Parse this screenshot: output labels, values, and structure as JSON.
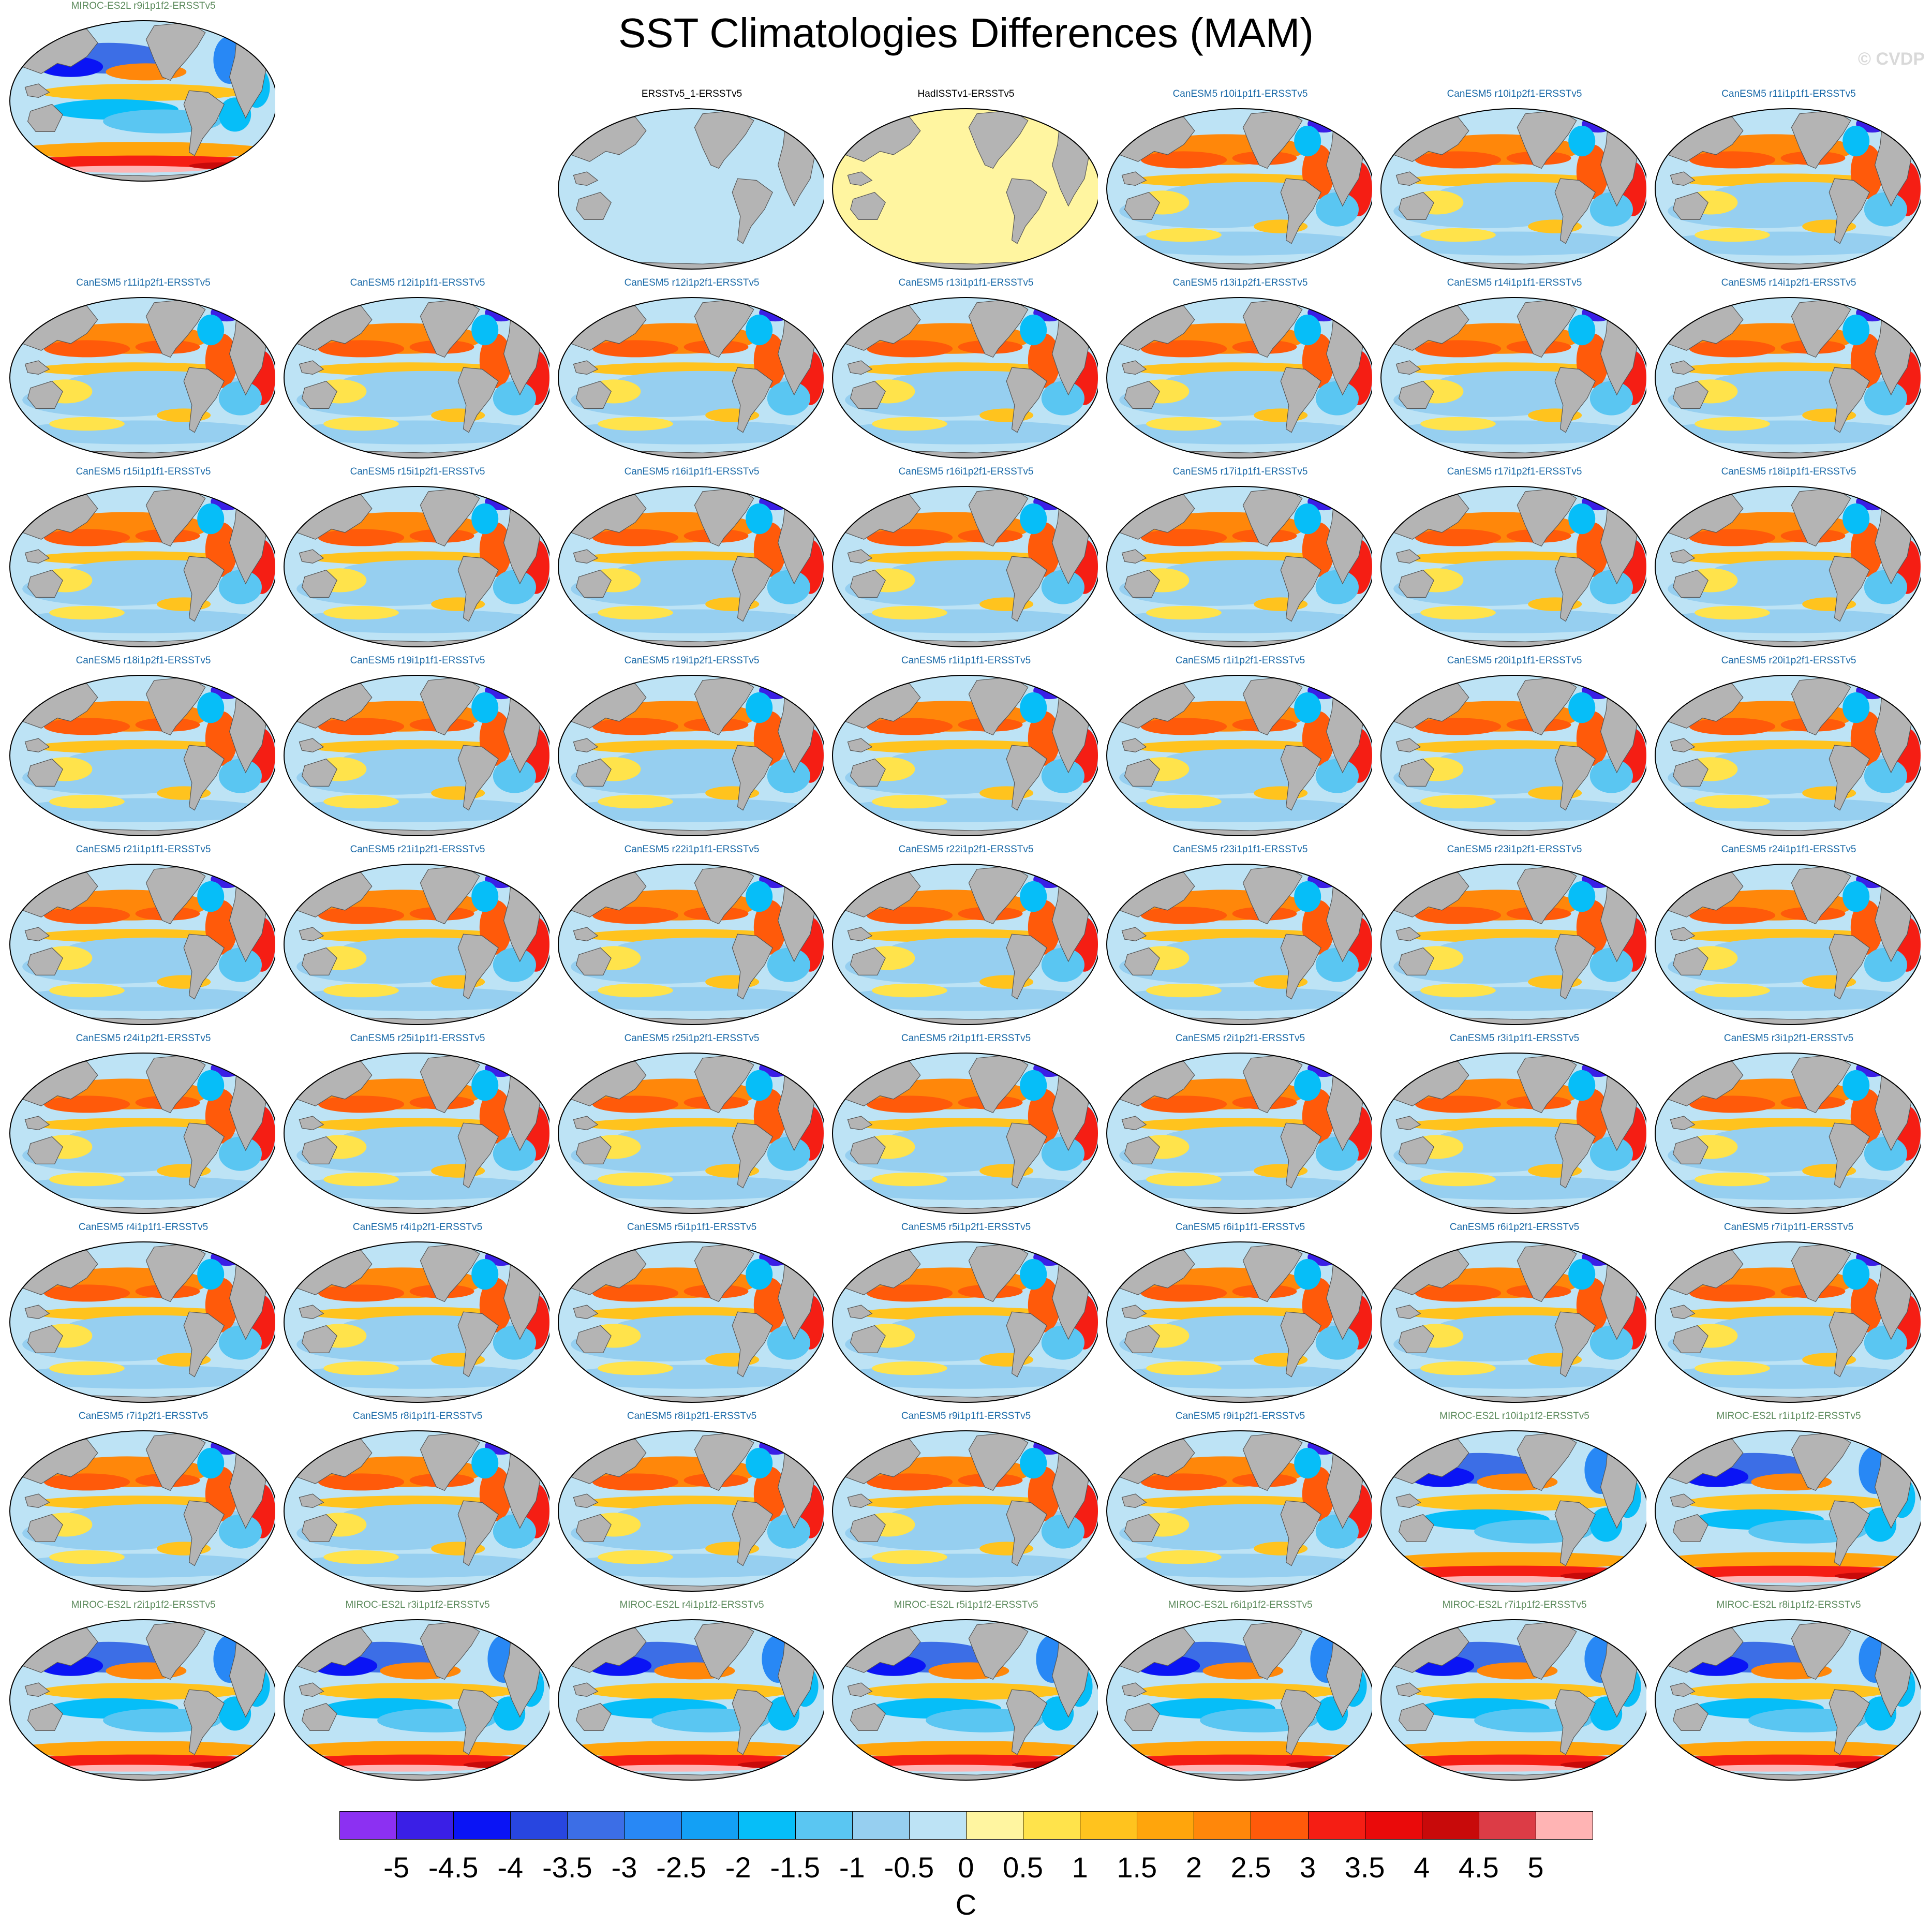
{
  "title": "SST Climatologies Differences (MAM)",
  "watermark": "© CVDP",
  "chart_data": {
    "type": "heatmap",
    "title": "SST Climatologies Differences (MAM)",
    "units": "C",
    "colorbar": {
      "levels": [
        -5,
        -4.5,
        -4,
        -3.5,
        -3,
        -2.5,
        -2,
        -1.5,
        -1,
        -0.5,
        0,
        0.5,
        1,
        1.5,
        2,
        2.5,
        3,
        3.5,
        4,
        4.5,
        5
      ],
      "tick_labels": [
        "-5",
        "-4.5",
        "-4",
        "-3.5",
        "-3",
        "-2.5",
        "-2",
        "-1.5",
        "-1",
        "-0.5",
        "0",
        "0.5",
        "1",
        "1.5",
        "2",
        "2.5",
        "3",
        "3.5",
        "4",
        "4.5",
        "5"
      ],
      "colors": [
        "#8c30f2",
        "#3a1fe6",
        "#0a14f5",
        "#2846e0",
        "#3c6ee6",
        "#2888f5",
        "#13a0f5",
        "#06bef8",
        "#5ac6f2",
        "#96cff0",
        "#bde3f5",
        "#fff5a0",
        "#ffe34b",
        "#ffc31e",
        "#ffa50c",
        "#ff870a",
        "#ff5a0a",
        "#f51e14",
        "#ea0a0a",
        "#c80a0a",
        "#dc3c46",
        "#ffb4b4"
      ]
    },
    "panels": [
      {
        "label": "ERSSTv5_1-ERSSTv5",
        "dataset": "ERSSTv5_1",
        "title_color": "#000000",
        "pattern": "zero"
      },
      {
        "label": "HadISSTv1-ERSSTv5",
        "dataset": "HadISSTv1",
        "title_color": "#000000",
        "pattern": "small_positive"
      },
      {
        "label": "CanESM5 r10i1p1f1-ERSSTv5",
        "dataset": "CanESM5",
        "title_color": "#1a6aa8",
        "pattern": "canesm5"
      },
      {
        "label": "CanESM5 r10i1p2f1-ERSSTv5",
        "dataset": "CanESM5",
        "title_color": "#1a6aa8",
        "pattern": "canesm5"
      },
      {
        "label": "CanESM5 r11i1p1f1-ERSSTv5",
        "dataset": "CanESM5",
        "title_color": "#1a6aa8",
        "pattern": "canesm5"
      },
      {
        "label": "CanESM5 r11i1p2f1-ERSSTv5",
        "dataset": "CanESM5",
        "title_color": "#1a6aa8",
        "pattern": "canesm5"
      },
      {
        "label": "CanESM5 r12i1p1f1-ERSSTv5",
        "dataset": "CanESM5",
        "title_color": "#1a6aa8",
        "pattern": "canesm5"
      },
      {
        "label": "CanESM5 r12i1p2f1-ERSSTv5",
        "dataset": "CanESM5",
        "title_color": "#1a6aa8",
        "pattern": "canesm5"
      },
      {
        "label": "CanESM5 r13i1p1f1-ERSSTv5",
        "dataset": "CanESM5",
        "title_color": "#1a6aa8",
        "pattern": "canesm5"
      },
      {
        "label": "CanESM5 r13i1p2f1-ERSSTv5",
        "dataset": "CanESM5",
        "title_color": "#1a6aa8",
        "pattern": "canesm5"
      },
      {
        "label": "CanESM5 r14i1p1f1-ERSSTv5",
        "dataset": "CanESM5",
        "title_color": "#1a6aa8",
        "pattern": "canesm5"
      },
      {
        "label": "CanESM5 r14i1p2f1-ERSSTv5",
        "dataset": "CanESM5",
        "title_color": "#1a6aa8",
        "pattern": "canesm5"
      },
      {
        "label": "CanESM5 r15i1p1f1-ERSSTv5",
        "dataset": "CanESM5",
        "title_color": "#1a6aa8",
        "pattern": "canesm5"
      },
      {
        "label": "CanESM5 r15i1p2f1-ERSSTv5",
        "dataset": "CanESM5",
        "title_color": "#1a6aa8",
        "pattern": "canesm5"
      },
      {
        "label": "CanESM5 r16i1p1f1-ERSSTv5",
        "dataset": "CanESM5",
        "title_color": "#1a6aa8",
        "pattern": "canesm5"
      },
      {
        "label": "CanESM5 r16i1p2f1-ERSSTv5",
        "dataset": "CanESM5",
        "title_color": "#1a6aa8",
        "pattern": "canesm5"
      },
      {
        "label": "CanESM5 r17i1p1f1-ERSSTv5",
        "dataset": "CanESM5",
        "title_color": "#1a6aa8",
        "pattern": "canesm5"
      },
      {
        "label": "CanESM5 r17i1p2f1-ERSSTv5",
        "dataset": "CanESM5",
        "title_color": "#1a6aa8",
        "pattern": "canesm5"
      },
      {
        "label": "CanESM5 r18i1p1f1-ERSSTv5",
        "dataset": "CanESM5",
        "title_color": "#1a6aa8",
        "pattern": "canesm5"
      },
      {
        "label": "CanESM5 r18i1p2f1-ERSSTv5",
        "dataset": "CanESM5",
        "title_color": "#1a6aa8",
        "pattern": "canesm5"
      },
      {
        "label": "CanESM5 r19i1p1f1-ERSSTv5",
        "dataset": "CanESM5",
        "title_color": "#1a6aa8",
        "pattern": "canesm5"
      },
      {
        "label": "CanESM5 r19i1p2f1-ERSSTv5",
        "dataset": "CanESM5",
        "title_color": "#1a6aa8",
        "pattern": "canesm5"
      },
      {
        "label": "CanESM5 r1i1p1f1-ERSSTv5",
        "dataset": "CanESM5",
        "title_color": "#1a6aa8",
        "pattern": "canesm5"
      },
      {
        "label": "CanESM5 r1i1p2f1-ERSSTv5",
        "dataset": "CanESM5",
        "title_color": "#1a6aa8",
        "pattern": "canesm5"
      },
      {
        "label": "CanESM5 r20i1p1f1-ERSSTv5",
        "dataset": "CanESM5",
        "title_color": "#1a6aa8",
        "pattern": "canesm5"
      },
      {
        "label": "CanESM5 r20i1p2f1-ERSSTv5",
        "dataset": "CanESM5",
        "title_color": "#1a6aa8",
        "pattern": "canesm5"
      },
      {
        "label": "CanESM5 r21i1p1f1-ERSSTv5",
        "dataset": "CanESM5",
        "title_color": "#1a6aa8",
        "pattern": "canesm5"
      },
      {
        "label": "CanESM5 r21i1p2f1-ERSSTv5",
        "dataset": "CanESM5",
        "title_color": "#1a6aa8",
        "pattern": "canesm5"
      },
      {
        "label": "CanESM5 r22i1p1f1-ERSSTv5",
        "dataset": "CanESM5",
        "title_color": "#1a6aa8",
        "pattern": "canesm5"
      },
      {
        "label": "CanESM5 r22i1p2f1-ERSSTv5",
        "dataset": "CanESM5",
        "title_color": "#1a6aa8",
        "pattern": "canesm5"
      },
      {
        "label": "CanESM5 r23i1p1f1-ERSSTv5",
        "dataset": "CanESM5",
        "title_color": "#1a6aa8",
        "pattern": "canesm5"
      },
      {
        "label": "CanESM5 r23i1p2f1-ERSSTv5",
        "dataset": "CanESM5",
        "title_color": "#1a6aa8",
        "pattern": "canesm5"
      },
      {
        "label": "CanESM5 r24i1p1f1-ERSSTv5",
        "dataset": "CanESM5",
        "title_color": "#1a6aa8",
        "pattern": "canesm5"
      },
      {
        "label": "CanESM5 r24i1p2f1-ERSSTv5",
        "dataset": "CanESM5",
        "title_color": "#1a6aa8",
        "pattern": "canesm5"
      },
      {
        "label": "CanESM5 r25i1p1f1-ERSSTv5",
        "dataset": "CanESM5",
        "title_color": "#1a6aa8",
        "pattern": "canesm5"
      },
      {
        "label": "CanESM5 r25i1p2f1-ERSSTv5",
        "dataset": "CanESM5",
        "title_color": "#1a6aa8",
        "pattern": "canesm5"
      },
      {
        "label": "CanESM5 r2i1p1f1-ERSSTv5",
        "dataset": "CanESM5",
        "title_color": "#1a6aa8",
        "pattern": "canesm5"
      },
      {
        "label": "CanESM5 r2i1p2f1-ERSSTv5",
        "dataset": "CanESM5",
        "title_color": "#1a6aa8",
        "pattern": "canesm5"
      },
      {
        "label": "CanESM5 r3i1p1f1-ERSSTv5",
        "dataset": "CanESM5",
        "title_color": "#1a6aa8",
        "pattern": "canesm5"
      },
      {
        "label": "CanESM5 r3i1p2f1-ERSSTv5",
        "dataset": "CanESM5",
        "title_color": "#1a6aa8",
        "pattern": "canesm5"
      },
      {
        "label": "CanESM5 r4i1p1f1-ERSSTv5",
        "dataset": "CanESM5",
        "title_color": "#1a6aa8",
        "pattern": "canesm5"
      },
      {
        "label": "CanESM5 r4i1p2f1-ERSSTv5",
        "dataset": "CanESM5",
        "title_color": "#1a6aa8",
        "pattern": "canesm5"
      },
      {
        "label": "CanESM5 r5i1p1f1-ERSSTv5",
        "dataset": "CanESM5",
        "title_color": "#1a6aa8",
        "pattern": "canesm5"
      },
      {
        "label": "CanESM5 r5i1p2f1-ERSSTv5",
        "dataset": "CanESM5",
        "title_color": "#1a6aa8",
        "pattern": "canesm5"
      },
      {
        "label": "CanESM5 r6i1p1f1-ERSSTv5",
        "dataset": "CanESM5",
        "title_color": "#1a6aa8",
        "pattern": "canesm5"
      },
      {
        "label": "CanESM5 r6i1p2f1-ERSSTv5",
        "dataset": "CanESM5",
        "title_color": "#1a6aa8",
        "pattern": "canesm5"
      },
      {
        "label": "CanESM5 r7i1p1f1-ERSSTv5",
        "dataset": "CanESM5",
        "title_color": "#1a6aa8",
        "pattern": "canesm5"
      },
      {
        "label": "CanESM5 r7i1p2f1-ERSSTv5",
        "dataset": "CanESM5",
        "title_color": "#1a6aa8",
        "pattern": "canesm5"
      },
      {
        "label": "CanESM5 r8i1p1f1-ERSSTv5",
        "dataset": "CanESM5",
        "title_color": "#1a6aa8",
        "pattern": "canesm5"
      },
      {
        "label": "CanESM5 r8i1p2f1-ERSSTv5",
        "dataset": "CanESM5",
        "title_color": "#1a6aa8",
        "pattern": "canesm5"
      },
      {
        "label": "CanESM5 r9i1p1f1-ERSSTv5",
        "dataset": "CanESM5",
        "title_color": "#1a6aa8",
        "pattern": "canesm5"
      },
      {
        "label": "CanESM5 r9i1p2f1-ERSSTv5",
        "dataset": "CanESM5",
        "title_color": "#1a6aa8",
        "pattern": "canesm5"
      },
      {
        "label": "MIROC-ES2L r10i1p1f2-ERSSTv5",
        "dataset": "MIROC-ES2L",
        "title_color": "#5c8a5c",
        "pattern": "miroc"
      },
      {
        "label": "MIROC-ES2L r1i1p1f2-ERSSTv5",
        "dataset": "MIROC-ES2L",
        "title_color": "#5c8a5c",
        "pattern": "miroc"
      },
      {
        "label": "MIROC-ES2L r2i1p1f2-ERSSTv5",
        "dataset": "MIROC-ES2L",
        "title_color": "#5c8a5c",
        "pattern": "miroc"
      },
      {
        "label": "MIROC-ES2L r3i1p1f2-ERSSTv5",
        "dataset": "MIROC-ES2L",
        "title_color": "#5c8a5c",
        "pattern": "miroc"
      },
      {
        "label": "MIROC-ES2L r4i1p1f2-ERSSTv5",
        "dataset": "MIROC-ES2L",
        "title_color": "#5c8a5c",
        "pattern": "miroc"
      },
      {
        "label": "MIROC-ES2L r5i1p1f2-ERSSTv5",
        "dataset": "MIROC-ES2L",
        "title_color": "#5c8a5c",
        "pattern": "miroc"
      },
      {
        "label": "MIROC-ES2L r6i1p1f2-ERSSTv5",
        "dataset": "MIROC-ES2L",
        "title_color": "#5c8a5c",
        "pattern": "miroc"
      },
      {
        "label": "MIROC-ES2L r7i1p1f2-ERSSTv5",
        "dataset": "MIROC-ES2L",
        "title_color": "#5c8a5c",
        "pattern": "miroc"
      },
      {
        "label": "MIROC-ES2L r8i1p1f2-ERSSTv5",
        "dataset": "MIROC-ES2L",
        "title_color": "#5c8a5c",
        "pattern": "miroc"
      },
      {
        "label": "MIROC-ES2L r9i1p1f2-ERSSTv5",
        "dataset": "MIROC-ES2L",
        "title_color": "#5c8a5c",
        "pattern": "miroc"
      }
    ]
  }
}
